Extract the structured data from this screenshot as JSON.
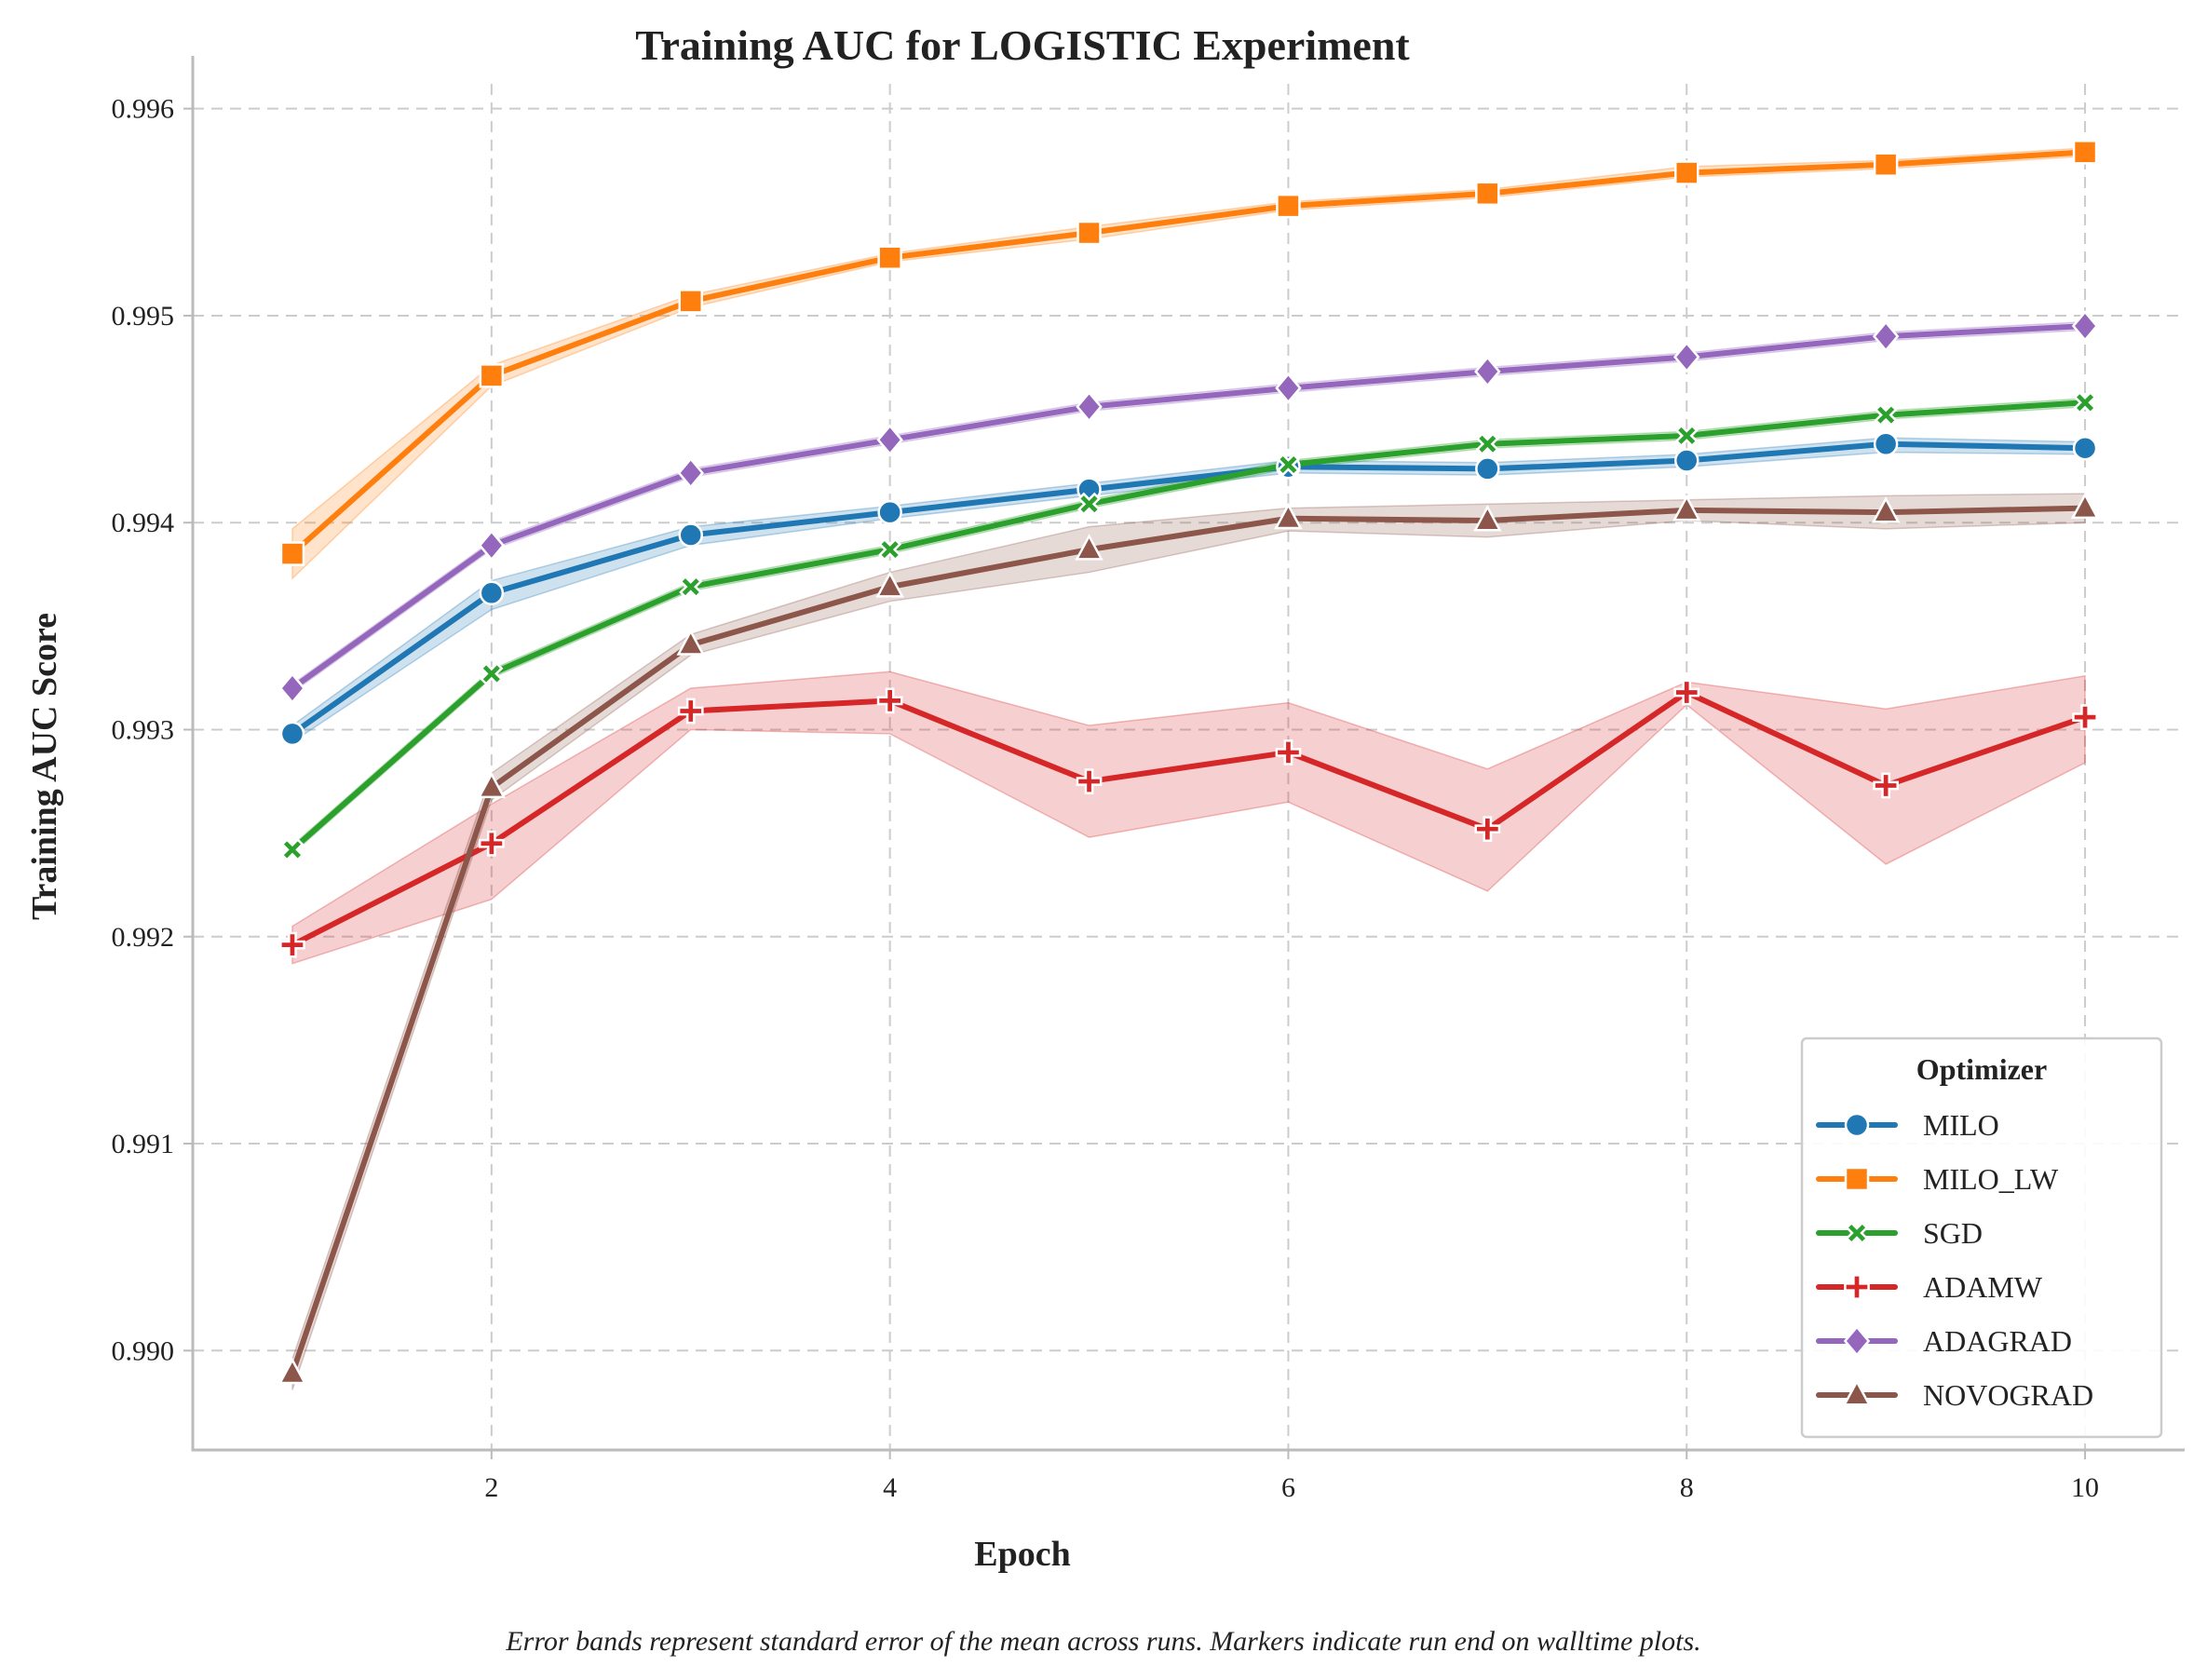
{
  "chart_data": {
    "type": "line",
    "title": "Training AUC for LOGISTIC Experiment",
    "xlabel": "Epoch",
    "ylabel": "Training AUC Score",
    "x": [
      1,
      2,
      3,
      4,
      5,
      6,
      7,
      8,
      9,
      10
    ],
    "xlim": [
      0.5,
      10.5
    ],
    "ylim": [
      0.98952,
      0.99612
    ],
    "xticks": [
      2,
      4,
      6,
      8,
      10
    ],
    "xtick_labels": [
      "2",
      "4",
      "6",
      "8",
      "10"
    ],
    "yticks": [
      0.99,
      0.991,
      0.992,
      0.993,
      0.994,
      0.995,
      0.996
    ],
    "ytick_labels": [
      "0.990",
      "0.991",
      "0.992",
      "0.993",
      "0.994",
      "0.995",
      "0.996"
    ],
    "grid": true,
    "legend": {
      "title": "Optimizer",
      "position": "bottom-right"
    },
    "caption": "Error bands represent standard error of the mean across runs. Markers indicate run end on walltime plots.",
    "series": [
      {
        "name": "MILO",
        "color": "#1f77b4",
        "marker": "circle",
        "values": [
          0.99298,
          0.99366,
          0.99394,
          0.99405,
          0.99416,
          0.99427,
          0.99426,
          0.9943,
          0.99438,
          0.99436
        ],
        "lower": [
          0.99294,
          0.99358,
          0.99389,
          0.99402,
          0.99413,
          0.99424,
          0.99423,
          0.99427,
          0.99434,
          0.99433
        ],
        "upper": [
          0.99302,
          0.99372,
          0.99398,
          0.99408,
          0.99419,
          0.9943,
          0.99429,
          0.99433,
          0.99441,
          0.99439
        ]
      },
      {
        "name": "MILO_LW",
        "color": "#ff7f0e",
        "marker": "square",
        "values": [
          0.99385,
          0.99471,
          0.99507,
          0.99528,
          0.9954,
          0.99553,
          0.99559,
          0.99569,
          0.99573,
          0.99579
        ],
        "lower": [
          0.99373,
          0.99466,
          0.99504,
          0.99526,
          0.99537,
          0.99551,
          0.99557,
          0.99567,
          0.99571,
          0.99577
        ],
        "upper": [
          0.99397,
          0.99476,
          0.9951,
          0.9953,
          0.99543,
          0.99555,
          0.99561,
          0.99572,
          0.99575,
          0.99581
        ]
      },
      {
        "name": "SGD",
        "color": "#2ca02c",
        "marker": "x",
        "values": [
          0.99242,
          0.99327,
          0.99369,
          0.99387,
          0.99409,
          0.99428,
          0.99438,
          0.99442,
          0.99452,
          0.99458
        ],
        "lower": [
          0.9924,
          0.99325,
          0.99367,
          0.99385,
          0.99407,
          0.99426,
          0.99436,
          0.9944,
          0.9945,
          0.99456
        ],
        "upper": [
          0.99244,
          0.99329,
          0.99371,
          0.99389,
          0.99411,
          0.9943,
          0.9944,
          0.99444,
          0.99454,
          0.9946
        ]
      },
      {
        "name": "ADAMW",
        "color": "#d62728",
        "marker": "plus",
        "values": [
          0.99196,
          0.99245,
          0.99309,
          0.99314,
          0.99275,
          0.99289,
          0.99252,
          0.99318,
          0.99273,
          0.99306
        ],
        "lower": [
          0.99187,
          0.99218,
          0.993,
          0.99298,
          0.99248,
          0.99265,
          0.99222,
          0.99312,
          0.99235,
          0.99284
        ],
        "upper": [
          0.99205,
          0.99264,
          0.9932,
          0.99328,
          0.99302,
          0.99313,
          0.99281,
          0.99323,
          0.9931,
          0.99326
        ]
      },
      {
        "name": "ADAGRAD",
        "color": "#9467bd",
        "marker": "diamond",
        "values": [
          0.9932,
          0.99389,
          0.99424,
          0.9944,
          0.99456,
          0.99465,
          0.99473,
          0.9948,
          0.9949,
          0.99495
        ],
        "lower": [
          0.99318,
          0.99387,
          0.99422,
          0.99438,
          0.99454,
          0.99463,
          0.99471,
          0.99478,
          0.99488,
          0.99493
        ],
        "upper": [
          0.99322,
          0.99391,
          0.99426,
          0.99442,
          0.99458,
          0.99467,
          0.99475,
          0.99482,
          0.99492,
          0.99497
        ]
      },
      {
        "name": "NOVOGRAD",
        "color": "#8c564b",
        "marker": "triangle",
        "values": [
          0.98989,
          0.99272,
          0.99341,
          0.99369,
          0.99387,
          0.99402,
          0.99401,
          0.99406,
          0.99405,
          0.99407
        ],
        "lower": [
          0.98981,
          0.99266,
          0.99336,
          0.99362,
          0.99376,
          0.99396,
          0.99393,
          0.99401,
          0.99397,
          0.994
        ],
        "upper": [
          0.98996,
          0.99279,
          0.99346,
          0.99376,
          0.99398,
          0.99407,
          0.99409,
          0.99411,
          0.99413,
          0.99414
        ]
      }
    ]
  }
}
